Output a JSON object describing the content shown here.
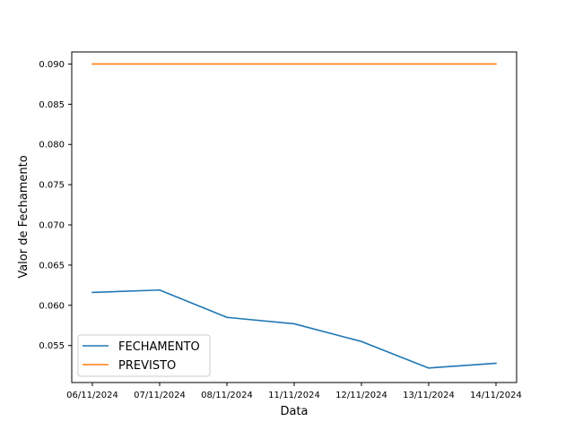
{
  "chart_data": {
    "type": "line",
    "title": "",
    "xlabel": "Data",
    "ylabel": "Valor de Fechamento",
    "categories": [
      "06/11/2024",
      "07/11/2024",
      "08/11/2024",
      "11/11/2024",
      "12/11/2024",
      "13/11/2024",
      "14/11/2024"
    ],
    "series": [
      {
        "name": "FECHAMENTO",
        "color": "#1f77b4",
        "values": [
          0.0616,
          0.0619,
          0.0585,
          0.0577,
          0.0555,
          0.0522,
          0.0528
        ]
      },
      {
        "name": "PREVISTO",
        "color": "#ff7f0e",
        "values": [
          0.09,
          0.09,
          0.09,
          0.09,
          0.09,
          0.09,
          0.09
        ]
      }
    ],
    "ylim": [
      0.0504,
      0.0915
    ],
    "yticks": [
      "0.055",
      "0.060",
      "0.065",
      "0.070",
      "0.075",
      "0.080",
      "0.085",
      "0.090"
    ],
    "grid": false,
    "legend_position": "lower-left"
  }
}
